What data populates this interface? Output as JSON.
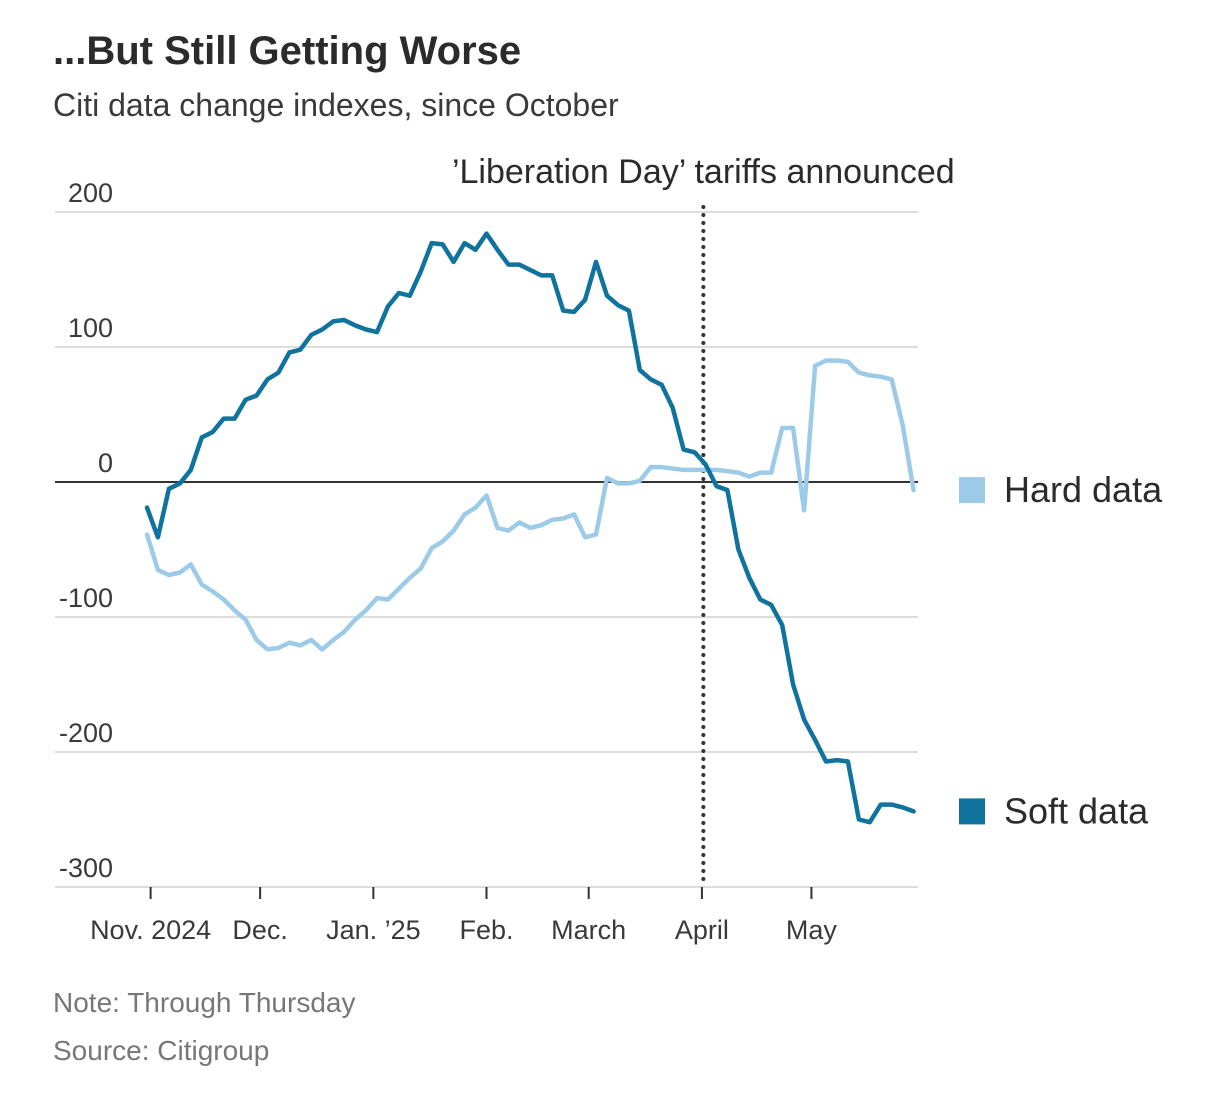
{
  "chart_data": {
    "type": "line",
    "title": "...But Still Getting Worse",
    "subtitle": "Citi data change indexes, since October",
    "note": "Note: Through Thursday",
    "source": "Source: Citigroup",
    "xlim": [
      -8.4,
      70.4
    ],
    "xticks": [
      {
        "value": 0.33,
        "label": "Nov. 2024"
      },
      {
        "value": 10.33,
        "label": "Dec."
      },
      {
        "value": 20.67,
        "label": "Jan. ’25"
      },
      {
        "value": 31,
        "label": "Feb."
      },
      {
        "value": 40.33,
        "label": "March"
      },
      {
        "value": 50.67,
        "label": "April"
      },
      {
        "value": 60.67,
        "label": "May"
      }
    ],
    "ylim": [
      -300,
      200
    ],
    "yticks": [
      -300,
      -200,
      -100,
      0,
      100,
      200
    ],
    "grid": true,
    "annotations": [
      {
        "text": "’Liberation Day’ tariffs announced",
        "x": 50.8
      }
    ],
    "series": [
      {
        "name": "Hard data",
        "color": "#9ccbe8",
        "values": [
          -39,
          -65,
          -69,
          -67,
          -61,
          -76,
          -81,
          -87,
          -95,
          -102,
          -117,
          -124,
          -123,
          -119,
          -121,
          -117,
          -124,
          -117,
          -111,
          -102,
          -95,
          -86,
          -87,
          -79,
          -71,
          -64,
          -49,
          -44,
          -36,
          -24,
          -19,
          -10,
          -34,
          -36,
          -30,
          -34,
          -32,
          -28,
          -27,
          -24,
          -41,
          -39,
          3,
          -1,
          -1,
          1,
          11,
          11,
          10,
          9,
          9,
          9,
          9,
          8,
          7,
          4,
          7,
          7,
          40,
          40,
          -21,
          86,
          90,
          90,
          89,
          81,
          79,
          78,
          76,
          42,
          -6
        ]
      },
      {
        "name": "Soft data",
        "color": "#10739e",
        "values": [
          -19,
          -41,
          -5,
          -1,
          9,
          33,
          37,
          47,
          47,
          61,
          64,
          76,
          81,
          96,
          98,
          109,
          113,
          119,
          120,
          116,
          113,
          111,
          130,
          140,
          138,
          156,
          177,
          176,
          163,
          177,
          172,
          184,
          172,
          161,
          161,
          157,
          153,
          153,
          127,
          126,
          135,
          163,
          138,
          131,
          127,
          83,
          76,
          72,
          55,
          24,
          22,
          13,
          -3,
          -6,
          -50,
          -71,
          -87,
          -91,
          -106,
          -150,
          -176,
          -191,
          -207,
          -206,
          -207,
          -250,
          -252,
          -239,
          -239,
          -241,
          -244
        ]
      }
    ]
  }
}
